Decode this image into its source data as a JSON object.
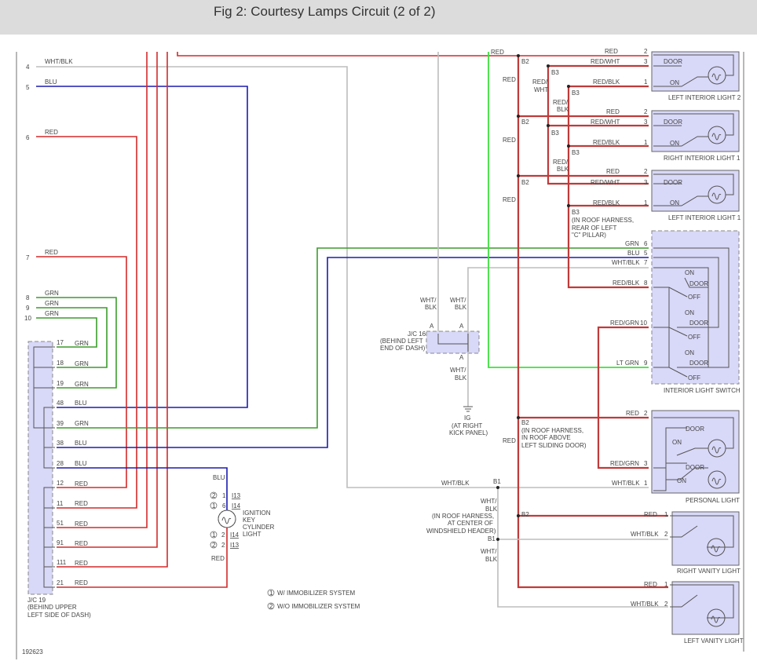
{
  "header": {
    "title": "Fig 2: Courtesy Lamps Circuit (2 of 2)"
  },
  "figure_id": "192623",
  "left_pins": [
    {
      "num": "4",
      "color": "WHT/BLK"
    },
    {
      "num": "5",
      "color": "BLU"
    },
    {
      "num": "6",
      "color": "RED"
    },
    {
      "num": "7",
      "color": "RED"
    },
    {
      "num": "8",
      "color": "GRN"
    },
    {
      "num": "9",
      "color": "GRN"
    },
    {
      "num": "10",
      "color": "GRN"
    }
  ],
  "jc19": {
    "name": "J/C 19",
    "loc1": "(BEHIND UPPER",
    "loc2": "LEFT SIDE OF DASH)",
    "pins": [
      {
        "num": "17",
        "color": "GRN"
      },
      {
        "num": "18",
        "color": "GRN"
      },
      {
        "num": "19",
        "color": "GRN"
      },
      {
        "num": "48",
        "color": "BLU"
      },
      {
        "num": "39",
        "color": "GRN"
      },
      {
        "num": "38",
        "color": "BLU"
      },
      {
        "num": "28",
        "color": "BLU"
      },
      {
        "num": "12",
        "color": "RED"
      },
      {
        "num": "11",
        "color": "RED"
      },
      {
        "num": "51",
        "color": "RED"
      },
      {
        "num": "91",
        "color": "RED"
      },
      {
        "num": "111",
        "color": "RED"
      },
      {
        "num": "21",
        "color": "RED"
      }
    ]
  },
  "ignition_light": {
    "name1": "IGNITION",
    "name2": "KEY",
    "name3": "CYLINDER",
    "name4": "LIGHT",
    "top_wire": "BLU",
    "bottom_wire": "RED",
    "pins": [
      {
        "mark": "2",
        "pin": "1",
        "conn": "I13"
      },
      {
        "mark": "1",
        "pin": "6",
        "conn": "I14"
      },
      {
        "mark": "1",
        "pin": "2",
        "conn": "I14"
      },
      {
        "mark": "2",
        "pin": "2",
        "conn": "I13"
      }
    ]
  },
  "legend": [
    {
      "mark": "1",
      "text": "W/ IMMOBILIZER SYSTEM"
    },
    {
      "mark": "2",
      "text": "W/O IMMOBILIZER SYSTEM"
    }
  ],
  "jc16": {
    "name": "J/C 16",
    "loc1": "(BEHIND LEFT",
    "loc2": "END OF DASH)",
    "pin": "A",
    "wire1": "WHT/",
    "wire2": "BLK"
  },
  "ground": {
    "name": "IG",
    "loc1": "(AT RIGHT",
    "loc2": "KICK PANEL)"
  },
  "splices": {
    "b1": "B1",
    "b2": "B2",
    "b3": "B3",
    "b3_note1": "(IN ROOF HARNESS,",
    "b3_note2": "REAR OF LEFT",
    "b3_note3": "\"C\" PILLAR)",
    "b2_note1": "(IN ROOF HARNESS,",
    "b2_note2": "IN ROOF ABOVE",
    "b2_note3": "LEFT SLIDING DOOR)",
    "b1_note1": "(IN ROOF HARNESS,",
    "b1_note2": "AT CENTER OF",
    "b1_note3": "WINDSHIELD HEADER)"
  },
  "wire_colors": {
    "red": "RED",
    "red_wht": "RED/WHT",
    "red_blk": "RED/BLK",
    "red_grn": "RED/GRN",
    "wht_blk": "WHT/BLK",
    "grn": "GRN",
    "blu": "BLU",
    "lt_grn": "LT GRN",
    "red_slash": "RED/",
    "wht": "WHT",
    "blk": "BLK",
    "wht_slash": "WHT/"
  },
  "components": {
    "left_interior_light_2": "LEFT INTERIOR LIGHT 2",
    "right_interior_light_1": "RIGHT INTERIOR LIGHT 1",
    "left_interior_light_1": "LEFT INTERIOR LIGHT 1",
    "interior_light_switch": "INTERIOR LIGHT SWITCH",
    "personal_light": "PERSONAL LIGHT",
    "right_vanity_light": "RIGHT VANITY LIGHT",
    "left_vanity_light": "LEFT VANITY LIGHT"
  },
  "switch_positions": {
    "on": "ON",
    "door": "DOOR",
    "off": "OFF"
  },
  "pin_numbers": {
    "p1": "1",
    "p2": "2",
    "p3": "3",
    "p5": "5",
    "p6": "6",
    "p7": "7",
    "p8": "8",
    "p9": "9",
    "p10": "10"
  },
  "colors": {
    "red": "#d42a2a",
    "blue": "#1c1cb0",
    "green": "#3c9c2c",
    "lt_green": "#3ee03e",
    "wht_blk": "#bdbdbd",
    "component_fill": "#d8d8f8"
  }
}
